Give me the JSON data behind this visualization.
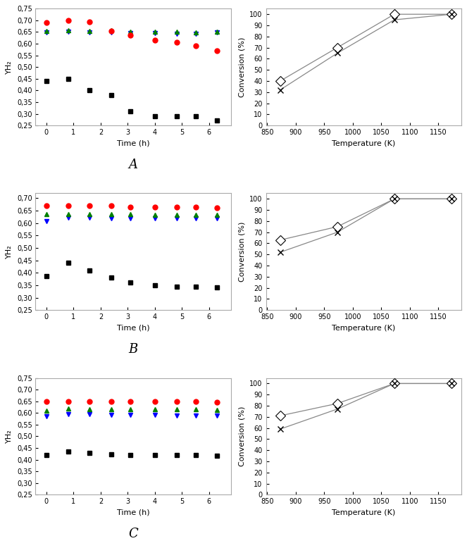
{
  "panel_A_left": {
    "time": [
      0,
      0.8,
      1.6,
      2.4,
      3.1,
      4.0,
      4.8,
      5.5,
      6.3
    ],
    "red_circles": [
      0.69,
      0.7,
      0.695,
      0.655,
      0.635,
      0.615,
      0.605,
      0.59,
      0.57
    ],
    "green_triangles_up": [
      0.655,
      0.658,
      0.655,
      0.656,
      0.652,
      0.652,
      0.65,
      0.648,
      0.65
    ],
    "blue_triangles_down": [
      0.647,
      0.65,
      0.648,
      0.648,
      0.645,
      0.645,
      0.643,
      0.643,
      0.648
    ],
    "black_squares": [
      0.44,
      0.45,
      0.4,
      0.38,
      0.31,
      0.29,
      0.29,
      0.29,
      0.27
    ],
    "ylabel": "YH₂",
    "xlabel": "Time (h)",
    "label": "A",
    "ylim": [
      0.25,
      0.75
    ],
    "yticks": [
      0.25,
      0.3,
      0.35,
      0.4,
      0.45,
      0.5,
      0.55,
      0.6,
      0.65,
      0.7,
      0.75
    ],
    "ytick_labels": [
      "0,25",
      "0,30",
      "0,35",
      "0,40",
      "0,45",
      "0,50",
      "0,55",
      "0,60",
      "0,65",
      "0,70",
      "0,75"
    ]
  },
  "panel_A_right": {
    "temp": [
      873,
      973,
      1073,
      1173
    ],
    "diamond": [
      40,
      70,
      100,
      100
    ],
    "cross": [
      32,
      65,
      95,
      100
    ],
    "ylabel": "Conversion (%)",
    "xlabel": "Temperature (K)",
    "ylim": [
      0,
      105
    ],
    "yticks": [
      0,
      10,
      20,
      30,
      40,
      50,
      60,
      70,
      80,
      90,
      100
    ],
    "xlim": [
      848,
      1190
    ],
    "xticks": [
      850,
      900,
      950,
      1000,
      1050,
      1100,
      1150
    ]
  },
  "panel_B_left": {
    "time": [
      0,
      0.8,
      1.6,
      2.4,
      3.1,
      4.0,
      4.8,
      5.5,
      6.3
    ],
    "red_circles": [
      0.67,
      0.67,
      0.67,
      0.67,
      0.665,
      0.665,
      0.665,
      0.665,
      0.663
    ],
    "green_triangles_up": [
      0.635,
      0.636,
      0.636,
      0.636,
      0.635,
      0.634,
      0.633,
      0.633,
      0.633
    ],
    "blue_triangles_down": [
      0.607,
      0.622,
      0.621,
      0.62,
      0.619,
      0.619,
      0.618,
      0.618,
      0.618
    ],
    "black_squares": [
      0.388,
      0.44,
      0.41,
      0.38,
      0.36,
      0.35,
      0.345,
      0.345,
      0.34
    ],
    "ylabel": "YH₂",
    "xlabel": "Time (h)",
    "label": "B",
    "ylim": [
      0.25,
      0.72
    ],
    "yticks": [
      0.25,
      0.3,
      0.35,
      0.4,
      0.45,
      0.5,
      0.55,
      0.6,
      0.65,
      0.7
    ],
    "ytick_labels": [
      "0,25",
      "0,30",
      "0,35",
      "0,40",
      "0,45",
      "0,50",
      "0,55",
      "0,60",
      "0,65",
      "0,70"
    ]
  },
  "panel_B_right": {
    "temp": [
      873,
      973,
      1073,
      1173
    ],
    "diamond": [
      63,
      75,
      100,
      100
    ],
    "cross": [
      52,
      70,
      100,
      100
    ],
    "ylabel": "Conversion (%)",
    "xlabel": "Temperature (K)",
    "ylim": [
      0,
      105
    ],
    "yticks": [
      0,
      10,
      20,
      30,
      40,
      50,
      60,
      70,
      80,
      90,
      100
    ],
    "xlim": [
      848,
      1190
    ],
    "xticks": [
      850,
      900,
      950,
      1000,
      1050,
      1100,
      1150
    ]
  },
  "panel_C_left": {
    "time": [
      0,
      0.8,
      1.6,
      2.4,
      3.1,
      4.0,
      4.8,
      5.5,
      6.3
    ],
    "red_circles": [
      0.65,
      0.65,
      0.65,
      0.648,
      0.65,
      0.648,
      0.648,
      0.648,
      0.645
    ],
    "green_triangles_up": [
      0.61,
      0.618,
      0.617,
      0.616,
      0.616,
      0.616,
      0.615,
      0.615,
      0.614
    ],
    "blue_triangles_down": [
      0.585,
      0.595,
      0.594,
      0.592,
      0.591,
      0.591,
      0.59,
      0.59,
      0.59
    ],
    "black_squares": [
      0.42,
      0.435,
      0.43,
      0.422,
      0.421,
      0.42,
      0.42,
      0.419,
      0.418
    ],
    "ylabel": "YH₂",
    "xlabel": "Time (h)",
    "label": "C",
    "ylim": [
      0.25,
      0.75
    ],
    "yticks": [
      0.25,
      0.3,
      0.35,
      0.4,
      0.45,
      0.5,
      0.55,
      0.6,
      0.65,
      0.7,
      0.75
    ],
    "ytick_labels": [
      "0,25",
      "0,30",
      "0,35",
      "0,40",
      "0,45",
      "0,50",
      "0,55",
      "0,60",
      "0,65",
      "0,70",
      "0,75"
    ]
  },
  "panel_C_right": {
    "temp": [
      873,
      973,
      1073,
      1173
    ],
    "diamond": [
      71,
      82,
      100,
      100
    ],
    "cross": [
      59,
      77,
      100,
      100
    ],
    "ylabel": "Conversion (%)",
    "xlabel": "Temperature (K)",
    "ylim": [
      0,
      105
    ],
    "yticks": [
      0,
      10,
      20,
      30,
      40,
      50,
      60,
      70,
      80,
      90,
      100
    ],
    "xlim": [
      848,
      1190
    ],
    "xticks": [
      850,
      900,
      950,
      1000,
      1050,
      1100,
      1150
    ]
  }
}
